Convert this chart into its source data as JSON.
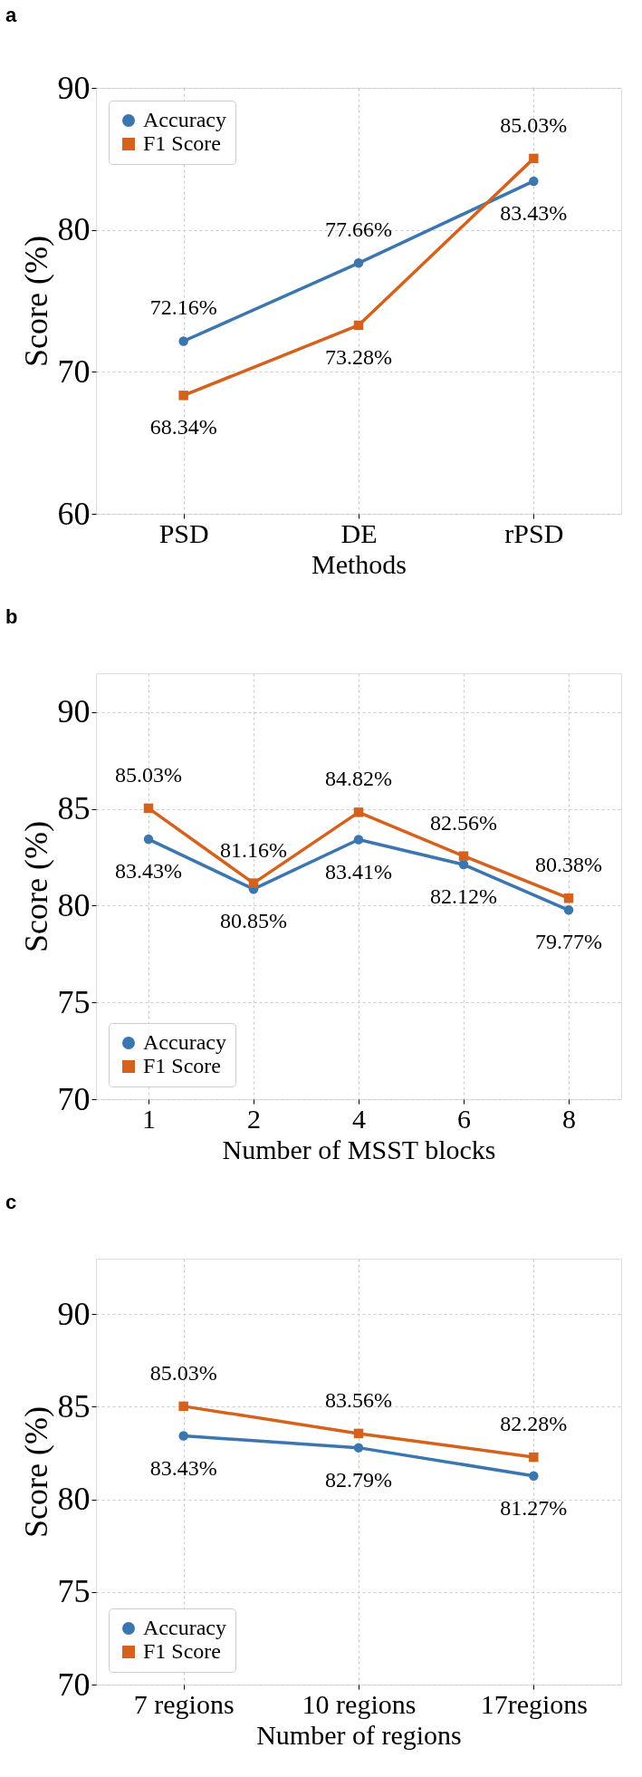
{
  "chart_data": [
    {
      "type": "line",
      "title": "a",
      "xlabel": "Methods",
      "ylabel": "Score (%)",
      "categories": [
        "PSD",
        "DE",
        "rPSD"
      ],
      "ylim": [
        60,
        90
      ],
      "yticks": [
        60,
        70,
        80,
        90
      ],
      "grid": true,
      "legend": "top left",
      "series": [
        {
          "name": "Accuracy",
          "color": "#3b76af",
          "marker": "circle",
          "values": [
            72.16,
            77.66,
            83.43
          ],
          "value_labels": [
            "72.16%",
            "77.66%",
            "83.43%"
          ]
        },
        {
          "name": "F1 Score",
          "color": "#d4621c",
          "marker": "square",
          "values": [
            68.34,
            73.28,
            85.03
          ],
          "value_labels": [
            "68.34%",
            "73.28%",
            "85.03%"
          ]
        }
      ]
    },
    {
      "type": "line",
      "title": "b",
      "xlabel": "Number of MSST blocks",
      "ylabel": "Score (%)",
      "categories": [
        "1",
        "2",
        "4",
        "6",
        "8"
      ],
      "ylim": [
        70,
        92
      ],
      "yticks": [
        70,
        75,
        80,
        85,
        90
      ],
      "grid": true,
      "legend": "bottom left",
      "series": [
        {
          "name": "Accuracy",
          "color": "#3b76af",
          "marker": "circle",
          "values": [
            83.43,
            80.85,
            83.41,
            82.12,
            79.77
          ],
          "value_labels": [
            "83.43%",
            "80.85%",
            "83.41%",
            "82.12%",
            "79.77%"
          ]
        },
        {
          "name": "F1 Score",
          "color": "#d4621c",
          "marker": "square",
          "values": [
            85.03,
            81.16,
            84.82,
            82.56,
            80.38
          ],
          "value_labels": [
            "85.03%",
            "81.16%",
            "84.82%",
            "82.56%",
            "80.38%"
          ]
        }
      ]
    },
    {
      "type": "line",
      "title": "c",
      "xlabel": "Number of regions",
      "ylabel": "Score (%)",
      "categories": [
        "7 regions",
        "10 regions",
        "17regions"
      ],
      "ylim": [
        70,
        93
      ],
      "yticks": [
        70,
        75,
        80,
        85,
        90
      ],
      "grid": true,
      "legend": "bottom left",
      "series": [
        {
          "name": "Accuracy",
          "color": "#3b76af",
          "marker": "circle",
          "values": [
            83.43,
            82.79,
            81.27
          ],
          "value_labels": [
            "83.43%",
            "82.79%",
            "81.27%"
          ]
        },
        {
          "name": "F1 Score",
          "color": "#d4621c",
          "marker": "square",
          "values": [
            85.03,
            83.56,
            82.28
          ],
          "value_labels": [
            "85.03%",
            "83.56%",
            "82.28%"
          ]
        }
      ]
    }
  ]
}
